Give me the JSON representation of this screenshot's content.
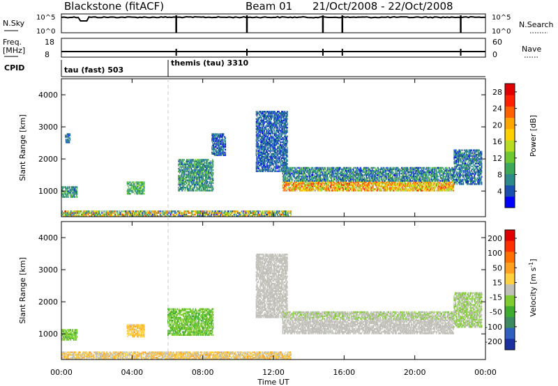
{
  "header": {
    "station": "Blackstone (fitACF)",
    "beam": "Beam 01",
    "date_range": "21/Oct/2008 - 22/Oct/2008"
  },
  "strips": {
    "nsky": {
      "left_label": "N.Sky",
      "right_label": "N.Search",
      "left_ticks": [
        "10^5",
        "10^0"
      ],
      "right_ticks": [
        "10^5",
        "10^0"
      ]
    },
    "freq": {
      "left_label_1": "Freq.",
      "left_label_2": "[MHz]",
      "right_label": "Nave",
      "left_ticks": [
        "18",
        "8"
      ],
      "right_ticks": [
        "60",
        "0"
      ]
    },
    "cpid": {
      "label": "CPID",
      "segments": [
        {
          "text": "tau (fast) 503",
          "start_hour": 0
        },
        {
          "text": "themis (tau) 3310",
          "start_hour": 6
        }
      ]
    }
  },
  "x_axis": {
    "label": "Time UT",
    "tick_labels": [
      "00:00",
      "04:00",
      "08:00",
      "12:00",
      "16:00",
      "20:00",
      "00:00"
    ],
    "tick_hours": [
      0,
      4,
      8,
      12,
      16,
      20,
      24
    ]
  },
  "colors": {
    "power_scale": [
      "#0000ff",
      "#1a4fb0",
      "#2e8a8a",
      "#3ea85a",
      "#6ec832",
      "#b8dc20",
      "#ffd000",
      "#ffa500",
      "#ff6000",
      "#ff2000",
      "#e00000"
    ],
    "velocity_scale": [
      "#1c2fa0",
      "#2f60c0",
      "#3d8a60",
      "#3eaa30",
      "#80cc30",
      "#c0c0b8",
      "#ffd040",
      "#ffa020",
      "#ff7000",
      "#ff3000",
      "#e00000"
    ]
  },
  "chart_data": [
    {
      "type": "heatmap",
      "name": "power",
      "ylabel": "Slant Range [km]",
      "xlabel": "",
      "xlim": [
        0,
        24
      ],
      "ylim": [
        200,
        4500
      ],
      "y_ticks": [
        1000,
        2000,
        3000,
        4000
      ],
      "colorbar": {
        "label": "Power [dB]",
        "ticks": [
          4,
          8,
          12,
          16,
          20,
          24,
          28
        ],
        "range": [
          0,
          30
        ]
      },
      "regions": [
        {
          "t0": 0.0,
          "t1": 0.9,
          "r0": 800,
          "r1": 1150,
          "v0": 4,
          "v1": 12
        },
        {
          "t0": 0.2,
          "t1": 0.5,
          "r0": 2500,
          "r1": 2800,
          "v0": 2,
          "v1": 8
        },
        {
          "t0": 3.7,
          "t1": 4.7,
          "r0": 900,
          "r1": 1300,
          "v0": 6,
          "v1": 14
        },
        {
          "t0": 6.6,
          "t1": 8.6,
          "r0": 1000,
          "r1": 2000,
          "v0": 4,
          "v1": 12
        },
        {
          "t0": 8.5,
          "t1": 9.3,
          "r0": 2100,
          "r1": 2800,
          "v0": 2,
          "v1": 8
        },
        {
          "t0": 11.0,
          "t1": 12.8,
          "r0": 1600,
          "r1": 3500,
          "v0": 2,
          "v1": 8
        },
        {
          "t0": 12.5,
          "t1": 22.2,
          "r0": 1000,
          "r1": 1300,
          "v0": 12,
          "v1": 26
        },
        {
          "t0": 12.5,
          "t1": 22.2,
          "r0": 1300,
          "r1": 1750,
          "v0": 2,
          "v1": 12
        },
        {
          "t0": 22.2,
          "t1": 23.8,
          "r0": 1200,
          "r1": 2300,
          "v0": 2,
          "v1": 10
        },
        {
          "t0": 0.0,
          "t1": 13.0,
          "r0": 200,
          "r1": 400,
          "v0": 2,
          "v1": 24
        }
      ]
    },
    {
      "type": "heatmap",
      "name": "velocity",
      "ylabel": "Slant Range [km]",
      "xlabel": "Time UT",
      "xlim": [
        0,
        24
      ],
      "ylim": [
        200,
        4500
      ],
      "y_ticks": [
        1000,
        2000,
        3000,
        4000
      ],
      "colorbar": {
        "label": "Velocity [m s^-1]",
        "ticks": [
          "200",
          "100",
          "50",
          "15",
          "-15",
          "-50",
          "-100",
          "-200"
        ],
        "range": [
          -250,
          250
        ]
      },
      "regions": [
        {
          "t0": 0.0,
          "t1": 0.9,
          "r0": 800,
          "r1": 1150,
          "v0": -80,
          "v1": -20
        },
        {
          "t0": 3.7,
          "t1": 4.7,
          "r0": 900,
          "r1": 1300,
          "v0": 20,
          "v1": 80
        },
        {
          "t0": 6.0,
          "t1": 8.6,
          "r0": 950,
          "r1": 1800,
          "v0": -90,
          "v1": -30
        },
        {
          "t0": 11.0,
          "t1": 12.8,
          "r0": 1500,
          "r1": 3500,
          "v0": -20,
          "v1": 10
        },
        {
          "t0": 12.5,
          "t1": 22.2,
          "r0": 1000,
          "r1": 1450,
          "v0": -12,
          "v1": 12
        },
        {
          "t0": 12.5,
          "t1": 22.2,
          "r0": 1450,
          "r1": 1700,
          "v0": -40,
          "v1": 10
        },
        {
          "t0": 22.2,
          "t1": 23.8,
          "r0": 1200,
          "r1": 2300,
          "v0": -60,
          "v1": 10
        },
        {
          "t0": 0.0,
          "t1": 13.0,
          "r0": 200,
          "r1": 450,
          "v0": -20,
          "v1": 90
        }
      ]
    }
  ]
}
